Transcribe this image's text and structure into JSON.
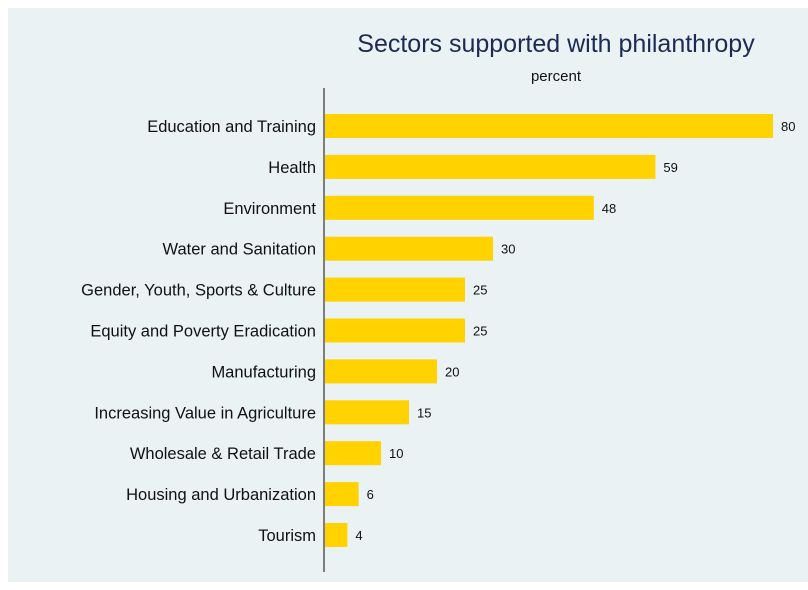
{
  "chart_data": {
    "type": "bar",
    "orientation": "horizontal",
    "title": "Sectors supported with philanthropy",
    "subtitle": "percent",
    "xlabel": "",
    "ylabel": "",
    "xlim": [
      0,
      80
    ],
    "grid": false,
    "categories": [
      "Education and Training",
      "Health",
      "Environment",
      "Water and Sanitation",
      "Gender, Youth, Sports & Culture",
      "Equity and Poverty Eradication",
      "Manufacturing",
      "Increasing Value in Agriculture",
      "Wholesale & Retail Trade",
      "Housing and Urbanization",
      "Tourism"
    ],
    "values": [
      80,
      59,
      48,
      30,
      25,
      25,
      20,
      15,
      10,
      6,
      4
    ],
    "value_labels": [
      "80",
      "59",
      "48",
      "30",
      "25",
      "25",
      "20",
      "15",
      "10",
      "6",
      "4"
    ]
  },
  "colors": {
    "bar": "#ffd200",
    "background": "#eaf2f3",
    "title": "#1c2a55",
    "axis": "#333333"
  }
}
